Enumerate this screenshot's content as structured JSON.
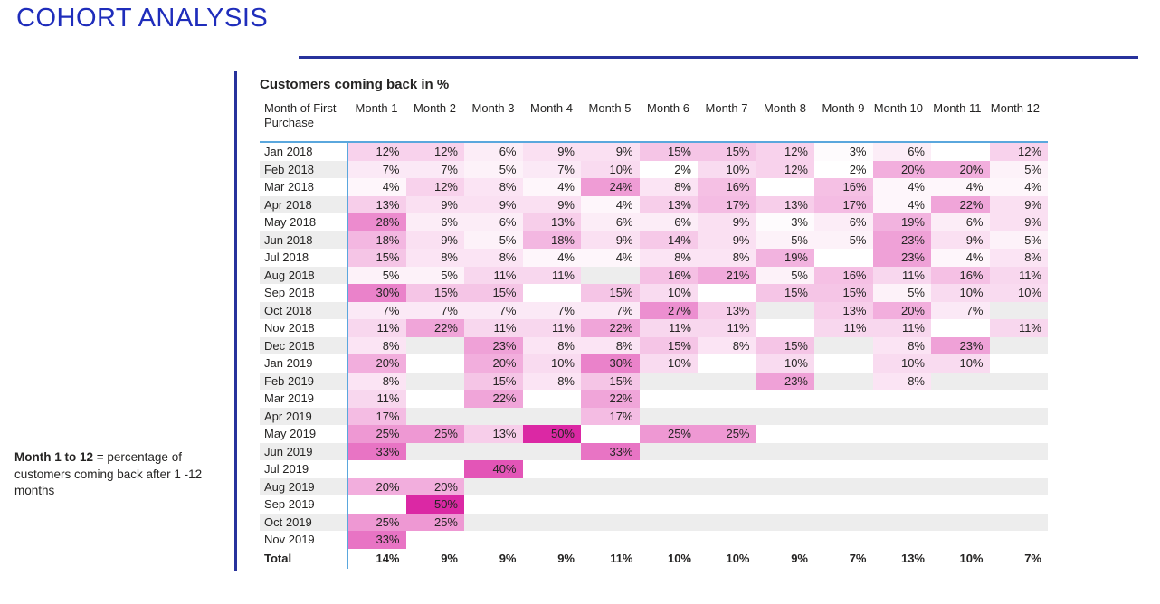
{
  "page": {
    "title": "COHORT ANALYSIS"
  },
  "note": {
    "bold": "Month 1 to 12",
    "rest": " = percentage of customers coming back after 1 -12 months"
  },
  "colors": {
    "title_blue": "#1f2dbb",
    "rule_navy": "#28329c",
    "separator_blue": "#5aa7dd",
    "stripe_gray": "#ededed",
    "text_dark": "#252423",
    "heat_low": "#ffffff",
    "heat_high": "#db28a4"
  },
  "chart_data": {
    "type": "heatmap",
    "title": "Customers coming back in %",
    "row_header_label": "Month of First Purchase",
    "value_suffix": "%",
    "color_scale": {
      "min_value": 2,
      "max_value": 50,
      "low": "#ffffff",
      "high": "#db28a4"
    },
    "columns": [
      "Month 1",
      "Month 2",
      "Month 3",
      "Month 4",
      "Month 5",
      "Month 6",
      "Month 7",
      "Month 8",
      "Month 9",
      "Month 10",
      "Month 11",
      "Month 12"
    ],
    "rows": [
      {
        "label": "Jan 2018",
        "values": [
          12,
          12,
          6,
          9,
          9,
          15,
          15,
          12,
          3,
          6,
          null,
          12
        ]
      },
      {
        "label": "Feb 2018",
        "values": [
          7,
          7,
          5,
          7,
          10,
          2,
          10,
          12,
          2,
          20,
          20,
          5
        ]
      },
      {
        "label": "Mar 2018",
        "values": [
          4,
          12,
          8,
          4,
          24,
          8,
          16,
          null,
          16,
          4,
          4,
          4
        ]
      },
      {
        "label": "Apr 2018",
        "values": [
          13,
          9,
          9,
          9,
          4,
          13,
          17,
          13,
          17,
          4,
          22,
          9
        ]
      },
      {
        "label": "May 2018",
        "values": [
          28,
          6,
          6,
          13,
          6,
          6,
          9,
          3,
          6,
          19,
          6,
          9
        ]
      },
      {
        "label": "Jun 2018",
        "values": [
          18,
          9,
          5,
          18,
          9,
          14,
          9,
          5,
          5,
          23,
          9,
          5
        ]
      },
      {
        "label": "Jul 2018",
        "values": [
          15,
          8,
          8,
          4,
          4,
          8,
          8,
          19,
          null,
          23,
          4,
          8
        ]
      },
      {
        "label": "Aug 2018",
        "values": [
          5,
          5,
          11,
          11,
          null,
          16,
          21,
          5,
          16,
          11,
          16,
          11
        ]
      },
      {
        "label": "Sep 2018",
        "values": [
          30,
          15,
          15,
          null,
          15,
          10,
          null,
          15,
          15,
          5,
          10,
          10
        ]
      },
      {
        "label": "Oct 2018",
        "values": [
          7,
          7,
          7,
          7,
          7,
          27,
          13,
          null,
          13,
          20,
          7,
          null
        ]
      },
      {
        "label": "Nov 2018",
        "values": [
          11,
          22,
          11,
          11,
          22,
          11,
          11,
          null,
          11,
          11,
          null,
          11
        ]
      },
      {
        "label": "Dec 2018",
        "values": [
          8,
          null,
          23,
          8,
          8,
          15,
          8,
          15,
          null,
          8,
          23,
          null
        ]
      },
      {
        "label": "Jan 2019",
        "values": [
          20,
          null,
          20,
          10,
          30,
          10,
          null,
          10,
          null,
          10,
          10,
          null
        ]
      },
      {
        "label": "Feb 2019",
        "values": [
          8,
          null,
          15,
          8,
          15,
          null,
          null,
          23,
          null,
          8,
          null,
          null
        ]
      },
      {
        "label": "Mar 2019",
        "values": [
          11,
          null,
          22,
          null,
          22,
          null,
          null,
          null,
          null,
          null,
          null,
          null
        ]
      },
      {
        "label": "Apr 2019",
        "values": [
          17,
          null,
          null,
          null,
          17,
          null,
          null,
          null,
          null,
          null,
          null,
          null
        ]
      },
      {
        "label": "May 2019",
        "values": [
          25,
          25,
          13,
          50,
          null,
          25,
          25,
          null,
          null,
          null,
          null,
          null
        ]
      },
      {
        "label": "Jun 2019",
        "values": [
          33,
          null,
          null,
          null,
          33,
          null,
          null,
          null,
          null,
          null,
          null,
          null
        ]
      },
      {
        "label": "Jul 2019",
        "values": [
          null,
          null,
          40,
          null,
          null,
          null,
          null,
          null,
          null,
          null,
          null,
          null
        ]
      },
      {
        "label": "Aug 2019",
        "values": [
          20,
          20,
          null,
          null,
          null,
          null,
          null,
          null,
          null,
          null,
          null,
          null
        ]
      },
      {
        "label": "Sep 2019",
        "values": [
          null,
          50,
          null,
          null,
          null,
          null,
          null,
          null,
          null,
          null,
          null,
          null
        ]
      },
      {
        "label": "Oct 2019",
        "values": [
          25,
          25,
          null,
          null,
          null,
          null,
          null,
          null,
          null,
          null,
          null,
          null
        ]
      },
      {
        "label": "Nov 2019",
        "values": [
          33,
          null,
          null,
          null,
          null,
          null,
          null,
          null,
          null,
          null,
          null,
          null
        ]
      }
    ],
    "total": {
      "label": "Total",
      "values": [
        14,
        9,
        9,
        9,
        11,
        10,
        10,
        9,
        7,
        13,
        10,
        7
      ]
    }
  }
}
